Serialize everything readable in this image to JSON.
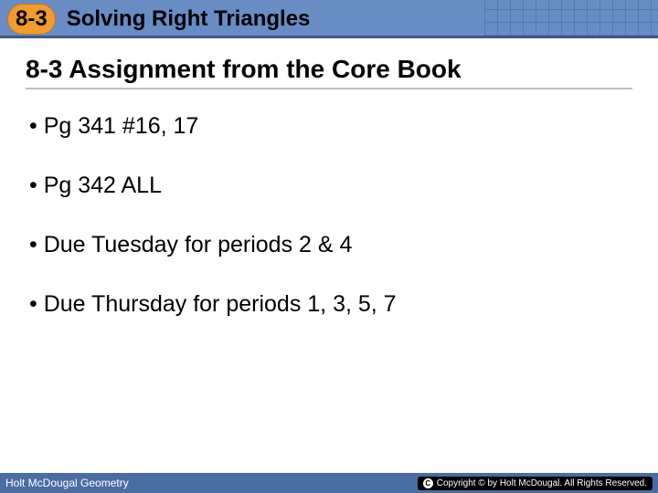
{
  "header": {
    "section_number": "8-3",
    "title": "Solving Right Triangles",
    "bg_color": "#678dc4",
    "badge_bg": "#f29b2e"
  },
  "slide": {
    "title": "8-3 Assignment from the Core Book",
    "title_fontsize": 28,
    "title_color": "#000000",
    "underline_color": "#bfbfbf"
  },
  "bullets": [
    "• Pg 341 #16, 17",
    "• Pg 342 ALL",
    "• Due Tuesday for periods 2 & 4",
    "• Due Thursday for periods 1, 3, 5, 7"
  ],
  "bullet_style": {
    "fontsize": 25,
    "color": "#000000",
    "spacing": 36
  },
  "footer": {
    "left_text": "Holt McDougal Geometry",
    "right_text": "Copyright © by Holt McDougal. All Rights Reserved.",
    "bg_color": "#4a6da3",
    "text_color": "#ffffff"
  }
}
